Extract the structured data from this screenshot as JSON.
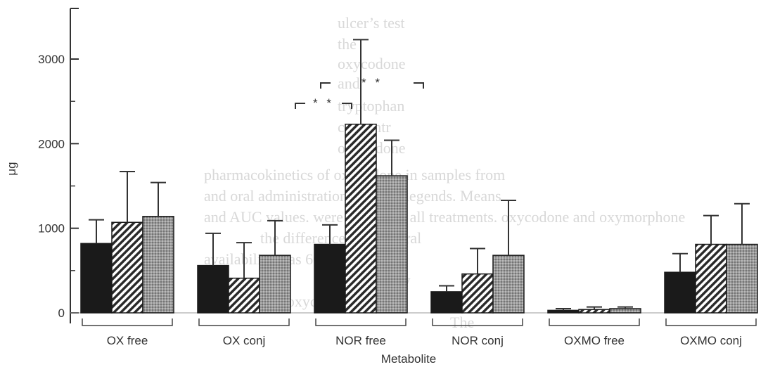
{
  "background_text": [
    "ulcer’s test",
    "the",
    "oxycodone",
    "and",
    "tryptophan",
    "concentr",
    "oxycodone",
    "pharmacokinetics of oxycodone in samples from",
    "and oral administration in Table legends. Means",
    "and AUC values. were similar in all treatments. oxycodone and oxymorphone",
    "the differences iv and oral",
    "availability was 60%",
    "Significantly",
    "was range of oxycodone",
    "The"
  ],
  "chart_data": {
    "type": "bar",
    "title": "",
    "xlabel": "Metabolite",
    "ylabel": "μg",
    "ylim": [
      0,
      3500
    ],
    "yticks": [
      0,
      1000,
      2000,
      3000
    ],
    "categories": [
      "OX free",
      "OX conj",
      "NOR free",
      "NOR conj",
      "OXMO free",
      "OXMO conj"
    ],
    "series": [
      {
        "values": [
          820,
          560,
          810,
          250,
          30,
          480
        ],
        "errors": [
          280,
          380,
          230,
          70,
          20,
          220
        ],
        "fill": "solid"
      },
      {
        "values": [
          1070,
          410,
          2230,
          460,
          40,
          810
        ],
        "errors": [
          600,
          420,
          1000,
          300,
          30,
          340
        ],
        "fill": "hatched"
      },
      {
        "values": [
          1140,
          680,
          1620,
          680,
          50,
          810
        ],
        "errors": [
          400,
          410,
          420,
          650,
          20,
          480
        ],
        "fill": "dotted"
      }
    ],
    "significance": [
      {
        "label": "* *",
        "from_category": 2,
        "from_series": 0,
        "to_category": 2,
        "to_series": 1
      },
      {
        "label": "* *",
        "from_category": 2,
        "from_series": 0,
        "to_category": 2,
        "to_series": 2
      }
    ],
    "grid": false,
    "legend": "none"
  }
}
